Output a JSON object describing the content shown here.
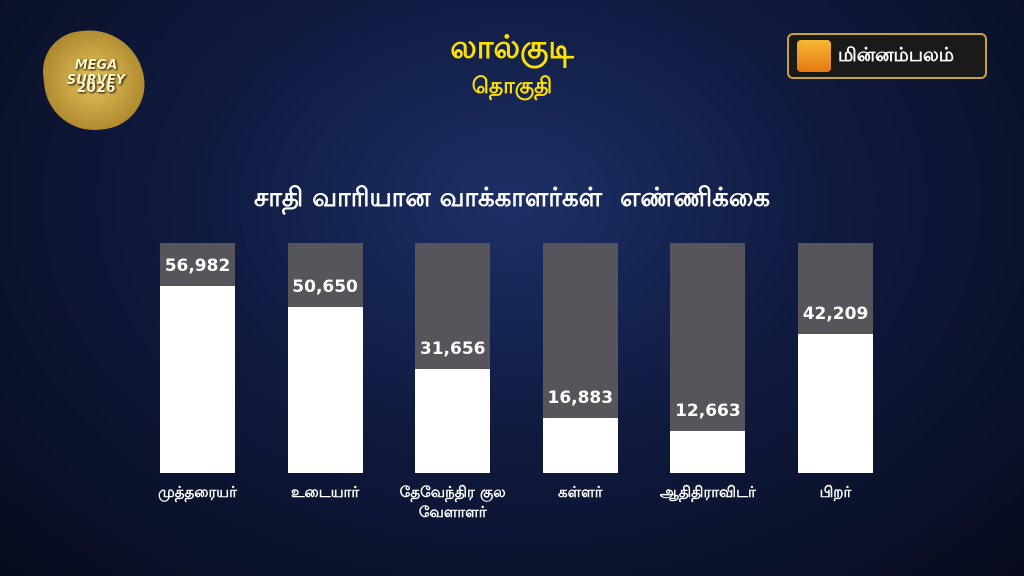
{
  "header": {
    "badge_line1": "MEGA SURVEY",
    "badge_line2": "2026",
    "title": "லால்குடி",
    "subtitle": "தொகுதி",
    "logo": "மின்னம்பலம்"
  },
  "chart_data": {
    "type": "bar",
    "title": "சாதி வாரியான வாக்காளர்கள்  எண்ணிக்கை",
    "categories": [
      "முத்தரையர்",
      "உடையார்",
      "தேவேந்திர குல வேளாளர்",
      "கள்ளர்",
      "ஆதிதிராவிடர்",
      "பிறர்"
    ],
    "values": [
      56982,
      50650,
      31656,
      16883,
      12663,
      42209
    ],
    "value_labels": [
      "56,982",
      "50,650",
      "31,656",
      "16,883",
      "12,663",
      "42,209"
    ],
    "ylim": [
      0,
      70000
    ],
    "color": "#ffffff",
    "track_color": "#55555b"
  }
}
